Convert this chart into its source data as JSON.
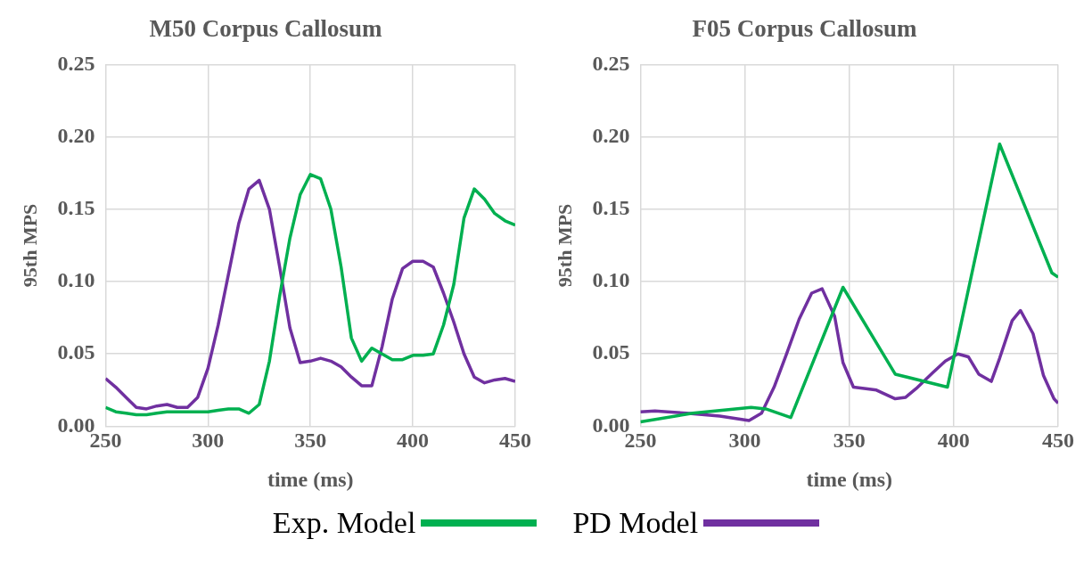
{
  "chart_data": [
    {
      "type": "line",
      "title": "M50 Corpus Callosum",
      "xlabel": "time (ms)",
      "ylabel": "95th MPS",
      "xlim": [
        250,
        450
      ],
      "xticks": [
        250,
        300,
        350,
        400,
        450
      ],
      "ylim": [
        0,
        0.25
      ],
      "yticks": [
        {
          "value": 0,
          "label": "0.00"
        },
        0.05,
        {
          "value": 0.1,
          "label": "0.10"
        },
        0.15,
        {
          "value": 0.2,
          "label": "0.20"
        },
        0.25
      ],
      "grid": true,
      "legend": "bottom",
      "marker": "none",
      "line_style": "solid",
      "series": [
        {
          "name": "Exp. Model",
          "color": "#00b050",
          "x": [
            250,
            255,
            260,
            265,
            270,
            275,
            280,
            290,
            300,
            305,
            310,
            315,
            320,
            325,
            330,
            335,
            340,
            345,
            350,
            355,
            360,
            365,
            370,
            375,
            380,
            385,
            390,
            395,
            400,
            405,
            410,
            415,
            420,
            425,
            430,
            435,
            440,
            445,
            450
          ],
          "values": [
            0.013,
            0.01,
            0.009,
            0.008,
            0.008,
            0.009,
            0.01,
            0.01,
            0.01,
            0.011,
            0.012,
            0.012,
            0.009,
            0.015,
            0.045,
            0.09,
            0.13,
            0.16,
            0.174,
            0.171,
            0.15,
            0.11,
            0.061,
            0.045,
            0.054,
            0.05,
            0.046,
            0.046,
            0.049,
            0.049,
            0.05,
            0.07,
            0.098,
            0.144,
            0.164,
            0.157,
            0.147,
            0.142,
            0.139
          ]
        },
        {
          "name": "PD Model",
          "color": "#7030a0",
          "x": [
            250,
            255,
            260,
            265,
            270,
            275,
            280,
            285,
            290,
            295,
            300,
            305,
            310,
            315,
            320,
            325,
            330,
            335,
            340,
            345,
            350,
            355,
            360,
            365,
            370,
            375,
            380,
            385,
            390,
            395,
            400,
            405,
            410,
            415,
            420,
            425,
            430,
            435,
            440,
            445,
            450
          ],
          "values": [
            0.033,
            0.027,
            0.02,
            0.013,
            0.012,
            0.014,
            0.015,
            0.013,
            0.013,
            0.02,
            0.04,
            0.07,
            0.105,
            0.14,
            0.164,
            0.17,
            0.15,
            0.11,
            0.068,
            0.044,
            0.045,
            0.047,
            0.045,
            0.041,
            0.034,
            0.028,
            0.028,
            0.055,
            0.088,
            0.109,
            0.114,
            0.114,
            0.11,
            0.092,
            0.072,
            0.05,
            0.034,
            0.03,
            0.032,
            0.033,
            0.031
          ]
        }
      ]
    },
    {
      "type": "line",
      "title": "F05 Corpus Callosum",
      "xlabel": "time (ms)",
      "ylabel": "95th MPS",
      "xlim": [
        250,
        450
      ],
      "xticks": [
        250,
        300,
        350,
        400,
        450
      ],
      "ylim": [
        0,
        0.25
      ],
      "yticks": [
        {
          "value": 0,
          "label": "0.00"
        },
        0.05,
        {
          "value": 0.1,
          "label": "0.10"
        },
        0.15,
        {
          "value": 0.2,
          "label": "0.20"
        },
        0.25
      ],
      "grid": true,
      "marker": "none",
      "line_style": "solid",
      "series": [
        {
          "color": "#00b050",
          "x": [
            250,
            275,
            303,
            310,
            322,
            347,
            372,
            397,
            422,
            447,
            450
          ],
          "values": [
            0.003,
            0.009,
            0.013,
            0.012,
            0.006,
            0.096,
            0.036,
            0.027,
            0.195,
            0.106,
            0.103
          ]
        },
        {
          "color": "#7030a0",
          "x": [
            250,
            257,
            263,
            272,
            288,
            302,
            308,
            314,
            320,
            326,
            332,
            337,
            343,
            347,
            352,
            358,
            363,
            372,
            377,
            382,
            390,
            396,
            402,
            407,
            412,
            418,
            422,
            428,
            432,
            438,
            443,
            448,
            450
          ],
          "values": [
            0.01,
            0.0105,
            0.01,
            0.009,
            0.007,
            0.004,
            0.009,
            0.027,
            0.05,
            0.074,
            0.092,
            0.095,
            0.076,
            0.044,
            0.027,
            0.026,
            0.025,
            0.019,
            0.02,
            0.026,
            0.037,
            0.045,
            0.05,
            0.048,
            0.036,
            0.031,
            0.047,
            0.073,
            0.08,
            0.064,
            0.035,
            0.019,
            0.016
          ]
        }
      ]
    }
  ]
}
